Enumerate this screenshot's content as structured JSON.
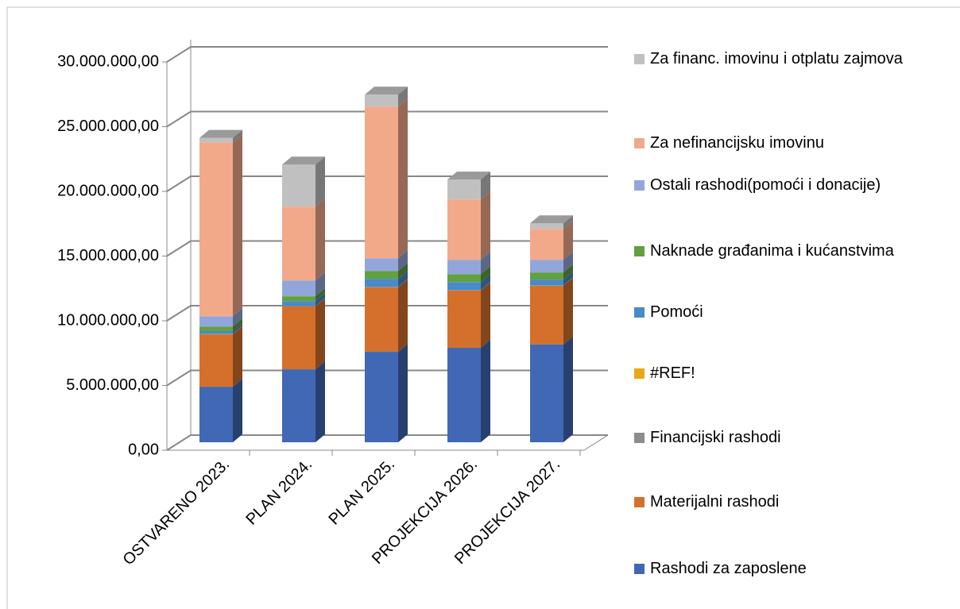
{
  "chart_data": {
    "type": "bar3d_stacked",
    "categories": [
      "OSTVARENO 2023.",
      "PLAN 2024.",
      "PLAN 2025.",
      "PROJEKCIJA 2026.",
      "PROJEKCIJA 2027."
    ],
    "series": [
      {
        "name": "Rashodi za zaposlene",
        "color": "#4068b4",
        "values": [
          4290000,
          5640000,
          6990000,
          7300000,
          7550000
        ]
      },
      {
        "name": "Materijalni rashodi",
        "color": "#d4702c",
        "values": [
          4050000,
          4850000,
          4970000,
          4420000,
          4540000
        ]
      },
      {
        "name": "Financijski rashodi",
        "color": "#8c8c8c",
        "values": [
          50000,
          50000,
          50000,
          50000,
          50000
        ]
      },
      {
        "name": "#REF!",
        "color": "#e8aa14",
        "values": [
          0,
          0,
          0,
          0,
          0
        ]
      },
      {
        "name": "Pomoći",
        "color": "#4a8ac6",
        "values": [
          200000,
          370000,
          620000,
          610000,
          430000
        ]
      },
      {
        "name": "Naknade građanima i kućanstvima",
        "color": "#62a040",
        "values": [
          350000,
          370000,
          610000,
          610000,
          550000
        ]
      },
      {
        "name": "Ostali rashodi(pomoći i donacije)",
        "color": "#92a6da",
        "values": [
          800000,
          1220000,
          980000,
          1110000,
          980000
        ]
      },
      {
        "name": "Za nefinancijsku imovinu",
        "color": "#f2a98a",
        "values": [
          13430000,
          5710000,
          11720000,
          4660000,
          2390000
        ]
      },
      {
        "name": "Za financ. imovinu i otplatu zajmova",
        "color": "#c0c0c0",
        "values": [
          350000,
          3250000,
          920000,
          1540000,
          430000
        ]
      }
    ],
    "ylim": [
      0,
      30000000
    ],
    "yticks": [
      {
        "value": 0,
        "label": "0,00"
      },
      {
        "value": 5000000,
        "label": "5.000.000,00"
      },
      {
        "value": 10000000,
        "label": "10.000.000,00"
      },
      {
        "value": 15000000,
        "label": "15.000.000,00"
      },
      {
        "value": 20000000,
        "label": "20.000.000,00"
      },
      {
        "value": 25000000,
        "label": "25.000.000,00"
      },
      {
        "value": 30000000,
        "label": "30.000.000,00"
      }
    ],
    "grid": true,
    "legend": "right"
  }
}
